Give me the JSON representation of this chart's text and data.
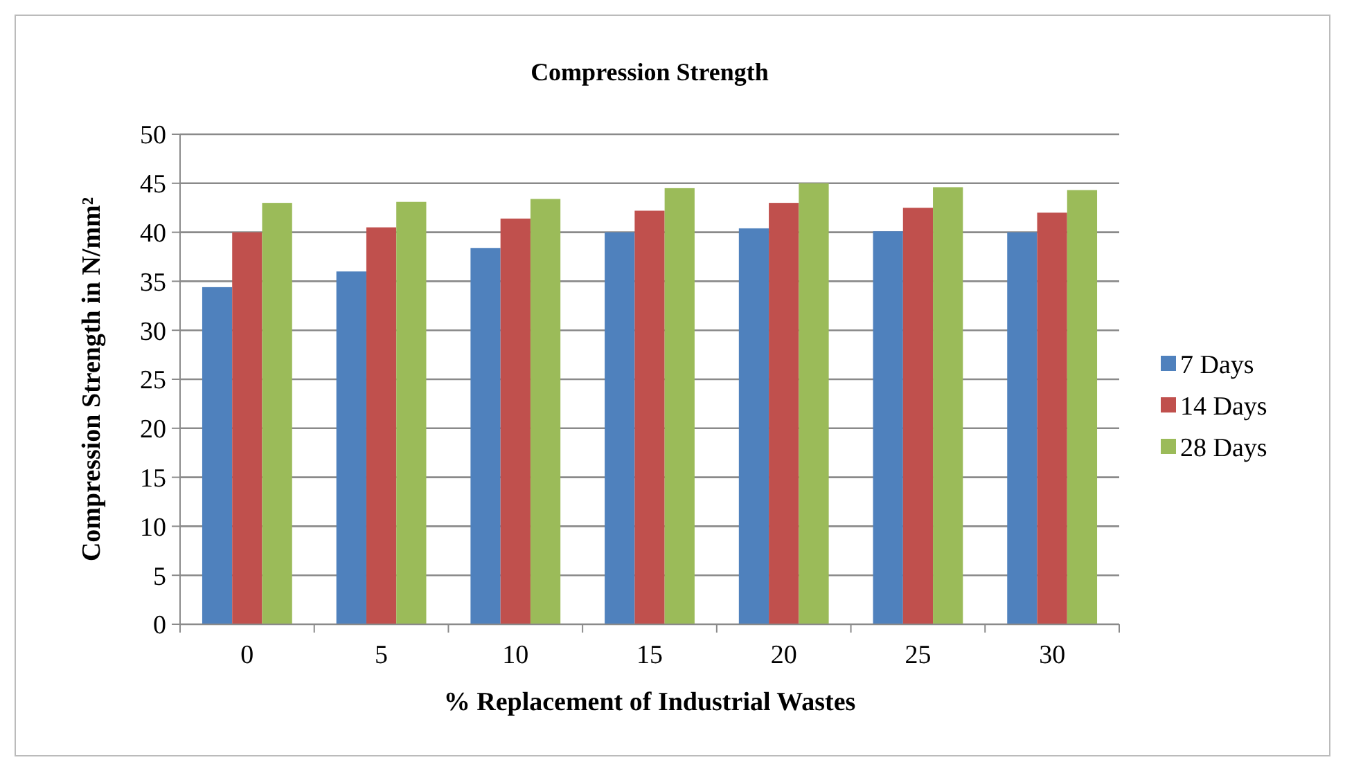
{
  "chart_data": {
    "type": "bar",
    "title": "Compression Strength",
    "xlabel": "% Replacement of Industrial Wastes",
    "ylabel": "Compression Strength in N/mm²",
    "categories": [
      "0",
      "5",
      "10",
      "15",
      "20",
      "25",
      "30"
    ],
    "series": [
      {
        "name": "7 Days",
        "color": "#4f81bd",
        "values": [
          34.4,
          36.0,
          38.4,
          40.0,
          40.4,
          40.1,
          40.0
        ]
      },
      {
        "name": "14 Days",
        "color": "#c0504d",
        "values": [
          40.0,
          40.5,
          41.4,
          42.2,
          43.0,
          42.5,
          42.0
        ]
      },
      {
        "name": "28 Days",
        "color": "#9bbb59",
        "values": [
          43.0,
          43.1,
          43.4,
          44.5,
          45.0,
          44.6,
          44.3
        ]
      }
    ],
    "ylim": [
      0,
      50
    ],
    "yticks": [
      0,
      5,
      10,
      15,
      20,
      25,
      30,
      35,
      40,
      45,
      50
    ],
    "grid": "y",
    "legend": "right"
  }
}
